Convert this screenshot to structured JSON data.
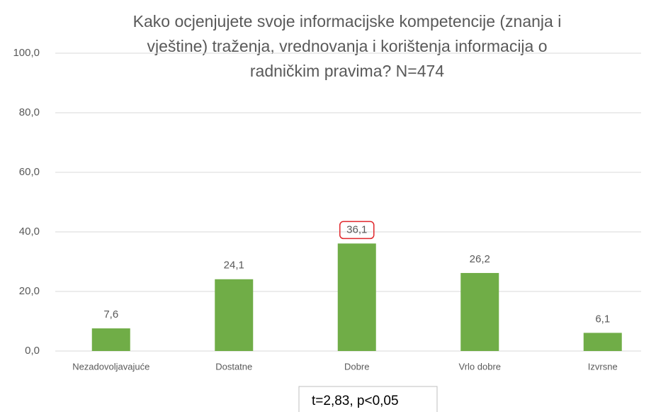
{
  "chart_data": {
    "type": "bar",
    "title": [
      "Kako ocjenjujete svoje informacijske kompetencije (znanja i",
      "vještine) traženja, vrednovanja i korištenja informacija o",
      "radničkim pravima? N=474"
    ],
    "categories": [
      "Nezadovoljavajuće",
      "Dostatne",
      "Dobre",
      "Vrlo dobre",
      "Izvrsne"
    ],
    "values": [
      7.6,
      24.1,
      36.1,
      26.2,
      6.1
    ],
    "value_labels": [
      "7,6",
      "24,1",
      "36,1",
      "26,2",
      "6,1"
    ],
    "color": "#70ad47",
    "ylim": [
      0,
      100
    ],
    "yticks": [
      {
        "value": 0,
        "label": "0,0"
      },
      {
        "value": 20,
        "label": "20,0"
      },
      {
        "value": 40,
        "label": "40,0"
      },
      {
        "value": 60,
        "label": "60,0"
      },
      {
        "value": 80,
        "label": "80,0"
      },
      {
        "value": 100,
        "label": "100,0"
      }
    ],
    "grid": true,
    "highlighted_category": "Dobre",
    "highlight_color": "#e0262b",
    "annotation": "t=2,83, p<0,05"
  }
}
